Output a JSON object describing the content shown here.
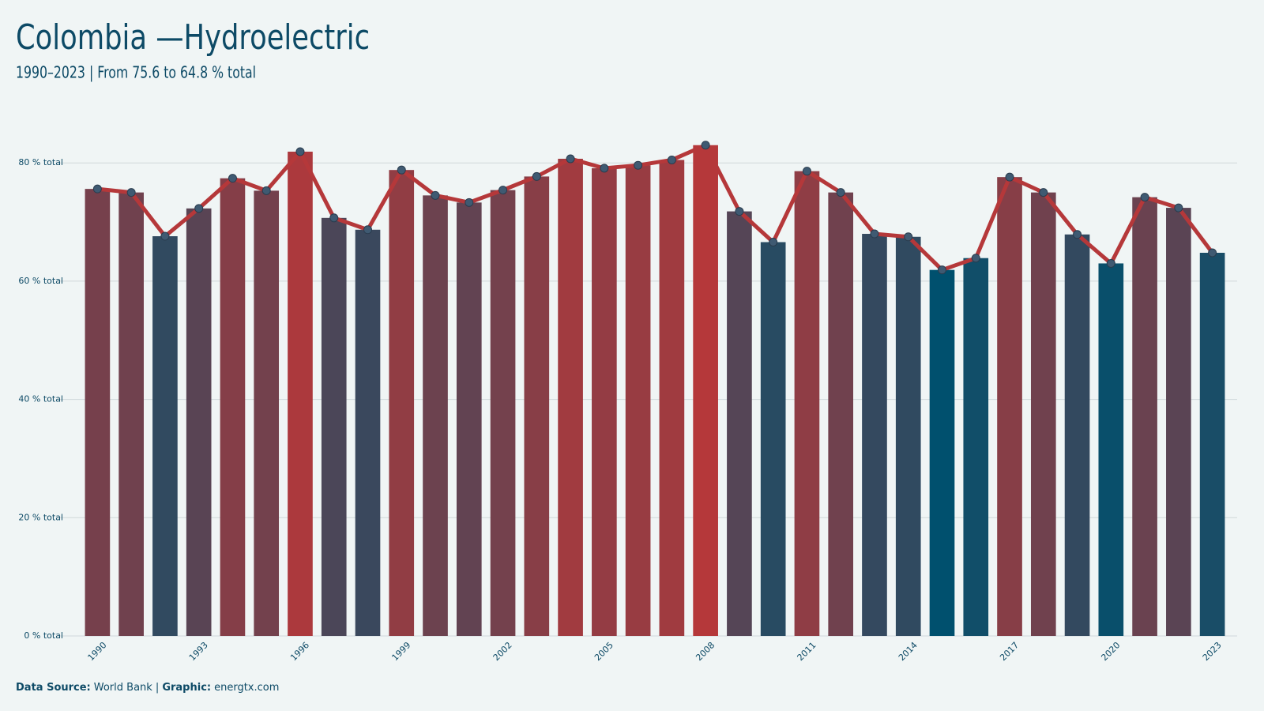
{
  "chart_data": {
    "type": "bar",
    "title": "Colombia —Hydroelectric",
    "subtitle": "1990–2023 | From 75.6 to 64.8 % total",
    "x": [
      1990,
      1991,
      1992,
      1993,
      1994,
      1995,
      1996,
      1997,
      1998,
      1999,
      2000,
      2001,
      2002,
      2003,
      2004,
      2005,
      2006,
      2007,
      2008,
      2009,
      2010,
      2011,
      2012,
      2013,
      2014,
      2015,
      2016,
      2017,
      2018,
      2019,
      2020,
      2021,
      2022,
      2023
    ],
    "values": [
      75.6,
      75.0,
      67.6,
      72.3,
      77.4,
      75.3,
      81.9,
      70.7,
      68.7,
      78.8,
      74.5,
      73.3,
      75.4,
      77.7,
      80.7,
      79.1,
      79.6,
      80.5,
      83.0,
      71.8,
      66.6,
      78.6,
      75.0,
      68.0,
      67.5,
      61.9,
      63.9,
      77.6,
      75.0,
      67.9,
      63.0,
      74.2,
      72.4,
      64.8
    ],
    "color_scale": [
      "#00506e",
      "#b5383a"
    ],
    "line_color": "#b5383a",
    "marker_color": "#3f5a72",
    "xticks": [
      1990,
      1993,
      1996,
      1999,
      2002,
      2005,
      2008,
      2011,
      2014,
      2017,
      2020,
      2023
    ],
    "ylim": [
      0,
      83.5
    ],
    "yticks": [
      {
        "value": 0,
        "label": "0 % total"
      },
      {
        "value": 20,
        "label": "20 % total"
      },
      {
        "value": 40,
        "label": "40 % total"
      },
      {
        "value": 60,
        "label": "60 % total"
      },
      {
        "value": 80,
        "label": "80 % total"
      }
    ],
    "grid": true,
    "footer": [
      {
        "text": "Data Source:",
        "bold": true
      },
      {
        "text": "World Bank |",
        "bold": false
      },
      {
        "text": "Graphic:",
        "bold": true
      },
      {
        "text": "energtx.com",
        "bold": false
      }
    ]
  }
}
